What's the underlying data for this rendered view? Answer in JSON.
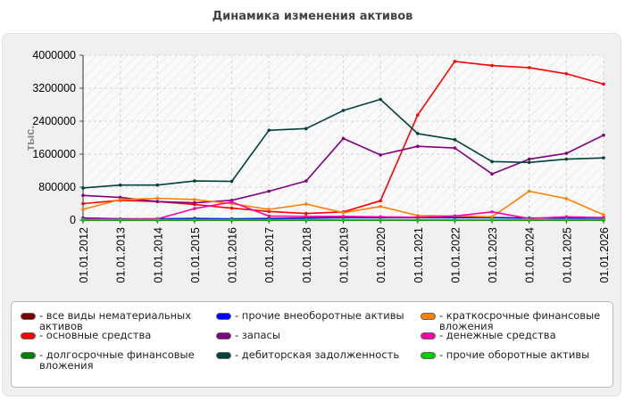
{
  "chart_data": {
    "type": "line",
    "title": "Динамика изменения активов",
    "ylabel": "тыс.",
    "xlabel": "",
    "x": [
      "01.01.2012",
      "01.01.2013",
      "01.01.2014",
      "01.01.2015",
      "01.01.2016",
      "01.01.2017",
      "01.01.2018",
      "01.01.2019",
      "01.01.2020",
      "01.01.2021",
      "01.01.2022",
      "01.01.2023",
      "01.01.2024",
      "01.01.2025",
      "01.01.2026"
    ],
    "yticks": [
      "0",
      "800000",
      "1600000",
      "2400000",
      "3200000",
      "4000000"
    ],
    "ylim": [
      0,
      4000000
    ],
    "grid": true,
    "legend_position": "bottom",
    "series": [
      {
        "name": "все виды нематериальных активов",
        "color": "#7a0000",
        "values": [
          0,
          0,
          0,
          0,
          0,
          0,
          0,
          0,
          0,
          0,
          0,
          0,
          0,
          0,
          0
        ]
      },
      {
        "name": "основные средства",
        "color": "#ff0000",
        "values": [
          400000,
          480000,
          450000,
          380000,
          290000,
          210000,
          160000,
          200000,
          470000,
          2550000,
          3850000,
          3750000,
          3700000,
          3550000,
          3300000
        ]
      },
      {
        "name": "долгосрочные финансовые вложения",
        "color": "#008000",
        "values": [
          0,
          0,
          0,
          0,
          0,
          0,
          0,
          0,
          0,
          0,
          0,
          0,
          0,
          0,
          0
        ]
      },
      {
        "name": "прочие внеоборотные активы",
        "color": "#0000ff",
        "values": [
          50000,
          30000,
          30000,
          40000,
          30000,
          40000,
          50000,
          60000,
          60000,
          60000,
          60000,
          60000,
          50000,
          50000,
          50000
        ]
      },
      {
        "name": "запасы",
        "color": "#800080",
        "values": [
          600000,
          550000,
          450000,
          420000,
          480000,
          700000,
          950000,
          1980000,
          1580000,
          1790000,
          1750000,
          1120000,
          1480000,
          1620000,
          2060000
        ]
      },
      {
        "name": "дебиторская задолженность",
        "color": "#004040",
        "values": [
          780000,
          850000,
          850000,
          950000,
          940000,
          2180000,
          2220000,
          2660000,
          2930000,
          2100000,
          1950000,
          1420000,
          1400000,
          1480000,
          1510000
        ]
      },
      {
        "name": "краткосрочные финансовые вложения",
        "color": "#ff8000",
        "values": [
          260000,
          500000,
          530000,
          500000,
          400000,
          260000,
          390000,
          180000,
          330000,
          110000,
          100000,
          80000,
          700000,
          520000,
          130000
        ]
      },
      {
        "name": "денежные средства",
        "color": "#ff00aa",
        "values": [
          30000,
          20000,
          30000,
          280000,
          440000,
          100000,
          90000,
          90000,
          80000,
          70000,
          100000,
          200000,
          40000,
          80000,
          60000
        ]
      },
      {
        "name": "прочие оборотные активы",
        "color": "#00cc00",
        "values": [
          10000,
          10000,
          10000,
          10000,
          10000,
          10000,
          10000,
          10000,
          10000,
          10000,
          10000,
          10000,
          10000,
          10000,
          10000
        ]
      }
    ]
  }
}
